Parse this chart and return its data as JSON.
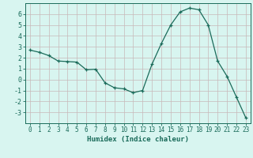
{
  "x": [
    0,
    1,
    2,
    3,
    4,
    5,
    6,
    7,
    8,
    9,
    10,
    11,
    12,
    13,
    14,
    15,
    16,
    17,
    18,
    19,
    20,
    21,
    22,
    23
  ],
  "y": [
    2.7,
    2.5,
    2.2,
    1.7,
    1.65,
    1.6,
    0.9,
    0.95,
    -0.3,
    -0.75,
    -0.85,
    -1.2,
    -1.0,
    1.4,
    3.3,
    5.0,
    6.2,
    6.55,
    6.4,
    5.0,
    1.7,
    0.3,
    -1.6,
    -3.5
  ],
  "xlabel": "Humidex (Indice chaleur)",
  "line_color": "#1a6b5a",
  "bg_color": "#d8f5f0",
  "grid_major_color": "#c8b8b8",
  "grid_minor_color": "#ddd0d0",
  "axis_color": "#1a6b5a",
  "tick_color": "#1a6b5a",
  "ylim": [
    -4,
    7
  ],
  "xlim": [
    -0.5,
    23.5
  ],
  "yticks": [
    -3,
    -2,
    -1,
    0,
    1,
    2,
    3,
    4,
    5,
    6
  ],
  "xticks": [
    0,
    1,
    2,
    3,
    4,
    5,
    6,
    7,
    8,
    9,
    10,
    11,
    12,
    13,
    14,
    15,
    16,
    17,
    18,
    19,
    20,
    21,
    22,
    23
  ]
}
